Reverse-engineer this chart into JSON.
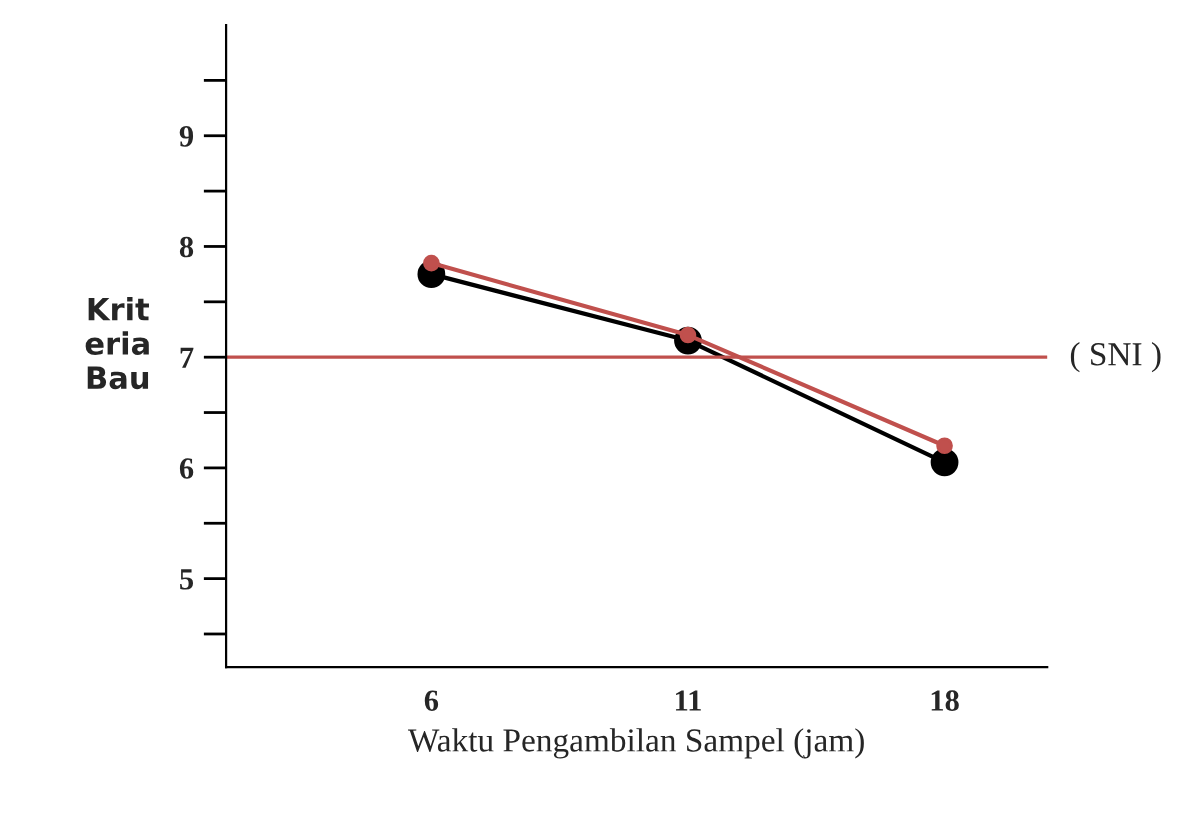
{
  "chart_data": {
    "type": "line",
    "ylabel": "Krit\neria\nBau",
    "xlabel": "Waktu Pengambilan Sampel (jam)",
    "categories": [
      "6",
      "11",
      "18"
    ],
    "series": [
      {
        "color": "#000000",
        "values": [
          7.75,
          7.15,
          6.05
        ]
      },
      {
        "color": "#c0504d",
        "values": [
          7.85,
          7.2,
          6.2
        ]
      }
    ],
    "ylim": [
      4.2,
      10
    ],
    "yticks": [
      {
        "value": 4.5,
        "label": null
      },
      5,
      {
        "value": 5.5,
        "label": null
      },
      6,
      {
        "value": 6.5,
        "label": null
      },
      7,
      {
        "value": 7.5,
        "label": null
      },
      8,
      {
        "value": 8.5,
        "label": null
      },
      9,
      {
        "value": 9.5,
        "label": null
      }
    ],
    "ref_lines": [
      {
        "axis": "y",
        "value": 7,
        "label": "( SNI )",
        "color": "#c0504d"
      }
    ],
    "marker": "circle",
    "line_style": "solid",
    "grid": false,
    "legend": false
  }
}
